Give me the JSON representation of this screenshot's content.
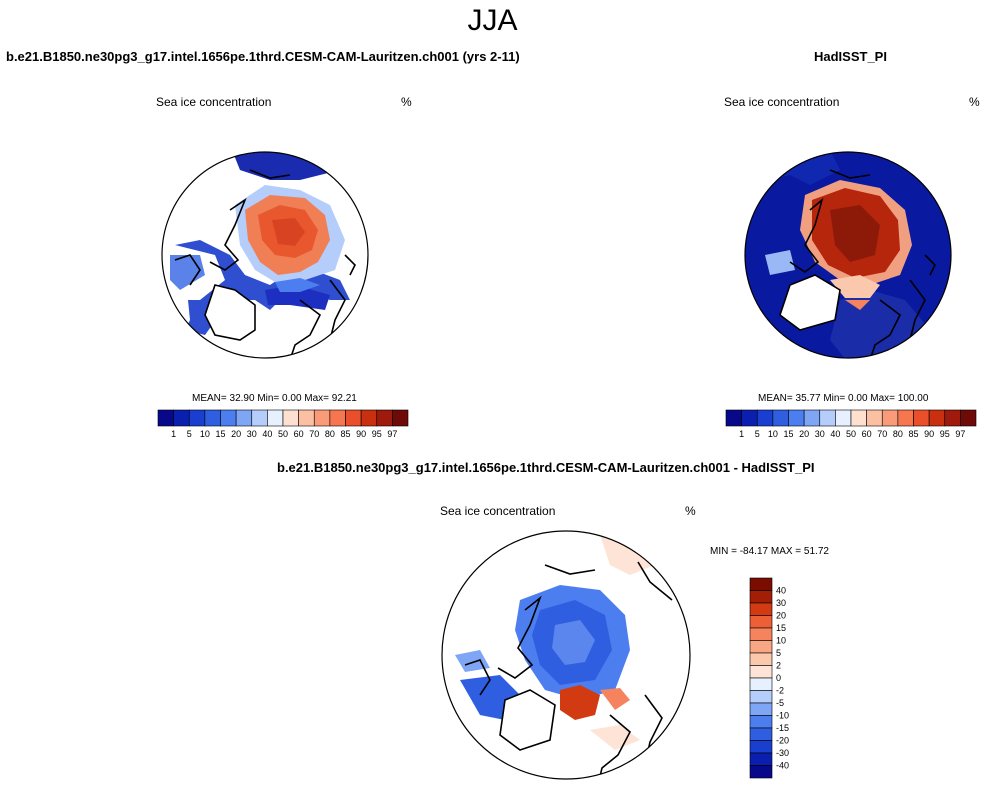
{
  "page": {
    "title": "JJA"
  },
  "panels": [
    {
      "case_title": "b.e21.B1850.ne30pg3_g17.intel.1656pe.1thrd.CESM-CAM-Lauritzen.ch001 (yrs 2-11)",
      "variable": "Sea ice concentration",
      "units": "%",
      "stats": "MEAN=  32.90  Min=   0.00  Max=  92.21"
    },
    {
      "case_title": "HadISST_PI",
      "variable": "Sea ice concentration",
      "units": "%",
      "stats": "MEAN=  35.77  Min=   0.00  Max= 100.00"
    },
    {
      "case_title": "b.e21.B1850.ne30pg3_g17.intel.1656pe.1thrd.CESM-CAM-Lauritzen.ch001 - HadISST_PI",
      "variable": "Sea ice concentration",
      "units": "%",
      "stats": "MIN = -84.17 MAX =  51.72"
    }
  ],
  "chart_data": [
    {
      "type": "heatmap",
      "title": "Sea ice concentration",
      "units": "%",
      "projection": "north polar stereographic",
      "mean": 32.9,
      "min": 0.0,
      "max": 92.21,
      "colorbar_levels": [
        1,
        5,
        10,
        15,
        20,
        30,
        40,
        50,
        60,
        70,
        80,
        85,
        90,
        95,
        97
      ],
      "colorbar_labels": [
        "1",
        "5",
        "10",
        "15",
        "20",
        "30",
        "40",
        "50",
        "60",
        "70",
        "80",
        "85",
        "90",
        "95",
        "97"
      ]
    },
    {
      "type": "heatmap",
      "title": "Sea ice concentration",
      "units": "%",
      "projection": "north polar stereographic",
      "mean": 35.77,
      "min": 0.0,
      "max": 100.0,
      "colorbar_levels": [
        1,
        5,
        10,
        15,
        20,
        30,
        40,
        50,
        60,
        70,
        80,
        85,
        90,
        95,
        97
      ],
      "colorbar_labels": [
        "1",
        "5",
        "10",
        "15",
        "20",
        "30",
        "40",
        "50",
        "60",
        "70",
        "80",
        "85",
        "90",
        "95",
        "97"
      ]
    },
    {
      "type": "heatmap",
      "title": "Sea ice concentration",
      "units": "%",
      "projection": "north polar stereographic",
      "min": -84.17,
      "max": 51.72,
      "colorbar_levels": [
        40,
        30,
        20,
        15,
        10,
        5,
        2,
        0,
        -2,
        -5,
        -10,
        -15,
        -20,
        -30,
        -40
      ],
      "colorbar_labels": [
        "40",
        "30",
        "20",
        "15",
        "10",
        "5",
        "2",
        "0",
        "-2",
        "-5",
        "-10",
        "-15",
        "-20",
        "-30",
        "-40"
      ]
    }
  ],
  "colors": {
    "abs_scale": [
      "#08088a",
      "#0a1fb0",
      "#1a3fd0",
      "#2f5fe0",
      "#4d7ef0",
      "#7fa6f5",
      "#b4cdfa",
      "#e6f0ff",
      "#fde0d0",
      "#fbbfa3",
      "#f99b78",
      "#f5764f",
      "#e94f2a",
      "#c9300f",
      "#9e1a0c",
      "#6e0a08"
    ],
    "diff_scale": [
      "#08088a",
      "#0a1fb0",
      "#1a3fd0",
      "#2f5fe0",
      "#4d7ef0",
      "#7fa6f5",
      "#b4cdfa",
      "#e6f0ff",
      "#fde4d6",
      "#fbc7ad",
      "#f9a684",
      "#f5845e",
      "#ec5f37",
      "#d23a12",
      "#a21e06",
      "#7a0d00"
    ],
    "land": "#ffffff",
    "coast": "#000000"
  }
}
